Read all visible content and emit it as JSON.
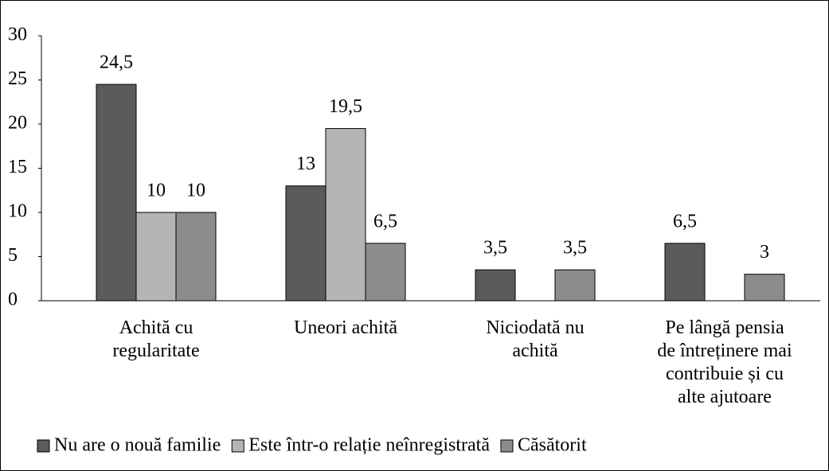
{
  "chart_data": {
    "type": "bar",
    "categories": [
      "Achită cu regularitate",
      "Uneori achită",
      "Niciodată nu achită",
      "Pe lângă pensia de întreținere mai contribuie și cu alte ajutoare"
    ],
    "series": [
      {
        "name": "Nu are o nouă familie",
        "color": "#5b5b5b",
        "values": [
          24.5,
          13,
          3.5,
          6.5
        ],
        "value_labels": [
          "24,5",
          "13",
          "3,5",
          "6,5"
        ]
      },
      {
        "name": "Este într-o relație neînregistrată",
        "color": "#b5b5b5",
        "values": [
          10,
          19.5,
          null,
          null
        ],
        "value_labels": [
          "10",
          "19,5",
          null,
          null
        ]
      },
      {
        "name": "Căsătorit",
        "color": "#8c8c8c",
        "values": [
          10,
          6.5,
          3.5,
          3
        ],
        "value_labels": [
          "10",
          "6,5",
          "3,5",
          "3"
        ]
      }
    ],
    "ylim": [
      0,
      30
    ],
    "yticks": [
      0,
      5,
      10,
      15,
      20,
      25,
      30
    ],
    "legend": "bottom"
  }
}
